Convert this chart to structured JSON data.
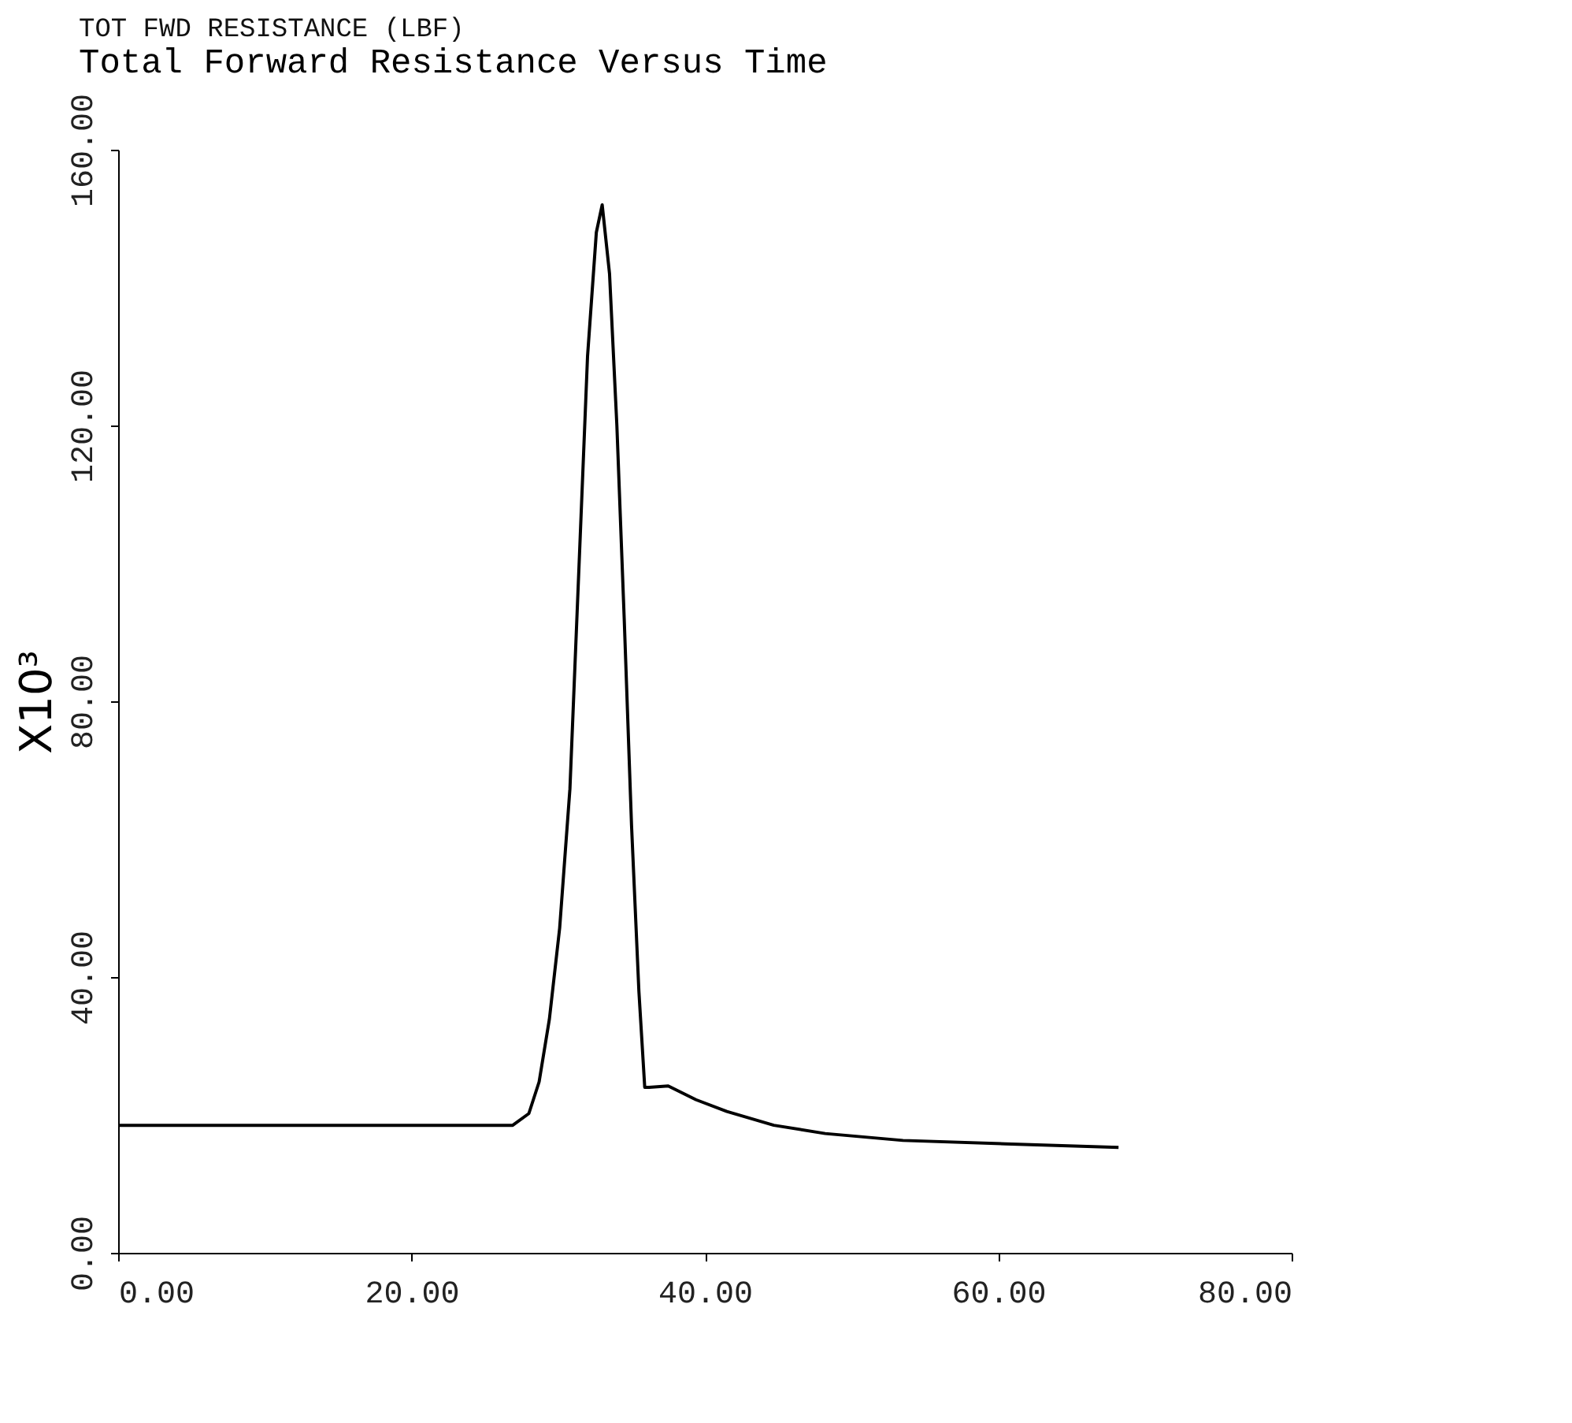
{
  "chart_data": {
    "type": "line",
    "title": "TOT FWD RESISTANCE (LBF)",
    "subtitle": "Total Forward Resistance Versus Time",
    "ylabel": "X10³",
    "x": [
      0,
      10,
      20,
      26.9,
      28.0,
      28.7,
      29.4,
      30.1,
      30.8,
      31.5,
      32.0,
      32.6,
      33.0,
      33.5,
      34.0,
      34.5,
      35.0,
      35.5,
      35.9,
      36.2,
      37.5,
      39.4,
      41.5,
      44.7,
      48.2,
      53.5,
      60.5,
      68.2
    ],
    "series": [
      {
        "color": "#000000",
        "values": [
          18.5,
          18.5,
          18.5,
          18.5,
          20.2,
          24.8,
          33.9,
          47.1,
          67.3,
          103.8,
          130,
          148,
          152,
          142,
          120,
          92,
          62,
          38,
          24,
          24,
          24.2,
          22.2,
          20.5,
          18.5,
          17.3,
          16.3,
          15.8,
          15.3
        ]
      }
    ],
    "xlim": [
      0,
      80
    ],
    "ylim": [
      0,
      160
    ],
    "xticks": [
      {
        "value": 0,
        "label": "0.00"
      },
      {
        "value": 20,
        "label": "20.00"
      },
      {
        "value": 40,
        "label": "40.00"
      },
      {
        "value": 60,
        "label": "60.00"
      },
      {
        "value": 80,
        "label": "80.00"
      }
    ],
    "yticks": [
      {
        "value": 0,
        "label": "0.00"
      },
      {
        "value": 40,
        "label": "40.00"
      },
      {
        "value": 80,
        "label": "80.00"
      },
      {
        "value": 120,
        "label": "120.00"
      },
      {
        "value": 160,
        "label": "160.00"
      }
    ],
    "grid": false,
    "legend": false,
    "marker": "none",
    "line_style": "solid"
  }
}
